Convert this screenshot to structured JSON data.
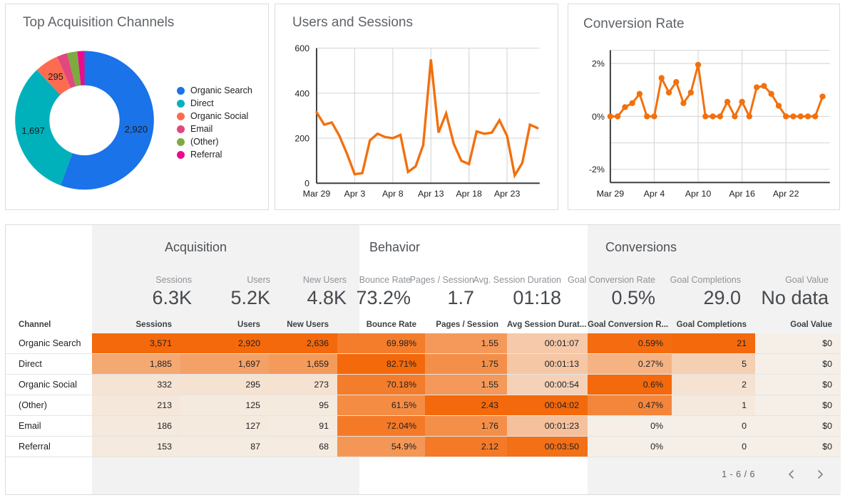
{
  "colors": {
    "orange": "#f2700d",
    "heat_low": "#f5efe7",
    "heat_high": "#f4690b",
    "band_gray": "#f2f2f2",
    "grid_line": "#d9d9d9",
    "axis_line": "#3c4043",
    "card_border": "#dadce0",
    "title_gray": "#5f6368"
  },
  "cards": {
    "donut": {
      "title": "Top Acquisition Channels"
    },
    "users": {
      "title": "Users and Sessions"
    },
    "conversion": {
      "title": "Conversion Rate"
    }
  },
  "chart_data": [
    {
      "type": "pie",
      "donut": true,
      "title": "Top Acquisition Channels",
      "legend_position": "right",
      "slices": [
        {
          "label": "Organic Search",
          "value": 2920,
          "display": "2,920",
          "color": "#1a73e8",
          "show_label": true
        },
        {
          "label": "Direct",
          "value": 1697,
          "display": "1,697",
          "color": "#00b1bb",
          "show_label": true
        },
        {
          "label": "Organic Social",
          "value": 295,
          "display": "295",
          "color": "#fd6c50",
          "show_label": true
        },
        {
          "label": "Email",
          "value": 127,
          "display": "127",
          "color": "#e2477e",
          "show_label": false
        },
        {
          "label": "(Other)",
          "value": 125,
          "display": "125",
          "color": "#7cab40",
          "show_label": false
        },
        {
          "label": "Referral",
          "value": 87,
          "display": "87",
          "color": "#ea0b8c",
          "show_label": false
        }
      ]
    },
    {
      "type": "line",
      "title": "Users and Sessions",
      "line_color": "#f2700d",
      "markers": false,
      "grid": true,
      "ylim": [
        0,
        600
      ],
      "yticks": [
        600,
        400,
        200,
        0
      ],
      "y_tick_labels": [
        "600",
        "400",
        "200",
        "0"
      ],
      "x": [
        "Mar 29",
        "Mar 30",
        "Mar 31",
        "Apr 1",
        "Apr 2",
        "Apr 3",
        "Apr 4",
        "Apr 5",
        "Apr 6",
        "Apr 7",
        "Apr 8",
        "Apr 9",
        "Apr 10",
        "Apr 11",
        "Apr 12",
        "Apr 13",
        "Apr 14",
        "Apr 15",
        "Apr 16",
        "Apr 17",
        "Apr 18",
        "Apr 19",
        "Apr 20",
        "Apr 21",
        "Apr 22",
        "Apr 23",
        "Apr 24",
        "Apr 25",
        "Apr 26",
        "Apr 27"
      ],
      "x_tick_indices": [
        0,
        5,
        10,
        15,
        20,
        25
      ],
      "x_tick_labels": [
        "Mar 29",
        "Apr 3",
        "Apr 8",
        "Apr 13",
        "Apr 18",
        "Apr 23"
      ],
      "series": [
        {
          "name": "Sessions",
          "values": [
            315,
            260,
            270,
            210,
            130,
            40,
            45,
            190,
            220,
            205,
            200,
            215,
            50,
            75,
            170,
            550,
            225,
            310,
            175,
            100,
            85,
            230,
            220,
            225,
            280,
            210,
            35,
            90,
            260,
            245
          ]
        }
      ]
    },
    {
      "type": "line",
      "title": "Conversion Rate",
      "line_color": "#f2700d",
      "markers": true,
      "grid": true,
      "unit": "%",
      "ylim": [
        -2.5,
        2.5
      ],
      "yticks": [
        2,
        0,
        -1,
        -2
      ],
      "y_tick_labels": [
        "2%",
        "0%",
        "",
        "-2%"
      ],
      "x": [
        "Mar 29",
        "Mar 30",
        "Mar 31",
        "Apr 1",
        "Apr 2",
        "Apr 3",
        "Apr 4",
        "Apr 5",
        "Apr 6",
        "Apr 7",
        "Apr 8",
        "Apr 9",
        "Apr 10",
        "Apr 11",
        "Apr 12",
        "Apr 13",
        "Apr 14",
        "Apr 15",
        "Apr 16",
        "Apr 17",
        "Apr 18",
        "Apr 19",
        "Apr 20",
        "Apr 21",
        "Apr 22",
        "Apr 23",
        "Apr 24",
        "Apr 25",
        "Apr 26",
        "Apr 27"
      ],
      "x_tick_indices": [
        0,
        6,
        12,
        18,
        24
      ],
      "x_tick_labels": [
        "Mar 29",
        "Apr 4",
        "Apr 10",
        "Apr 16",
        "Apr 22"
      ],
      "series": [
        {
          "name": "Conversion Rate",
          "values": [
            0,
            0,
            0.35,
            0.5,
            0.85,
            0,
            0,
            1.45,
            0.9,
            1.3,
            0.5,
            0.9,
            1.95,
            0,
            0,
            0,
            0.55,
            0,
            0.55,
            0,
            1.1,
            1.15,
            0.85,
            0.4,
            0,
            0,
            0,
            0,
            0,
            0.75
          ]
        }
      ]
    }
  ],
  "table": {
    "groups": [
      {
        "label": "Acquisition"
      },
      {
        "label": "Behavior"
      },
      {
        "label": "Conversions"
      }
    ],
    "scorecards": [
      {
        "label": "Sessions",
        "value": "6.3K"
      },
      {
        "label": "Users",
        "value": "5.2K"
      },
      {
        "label": "New Users",
        "value": "4.8K"
      },
      {
        "label": "Bounce Rate",
        "value": "73.2%"
      },
      {
        "label": "Pages / Session",
        "value": "1.7"
      },
      {
        "label": "Avg. Session Duration",
        "value": "01:18"
      },
      {
        "label": "Goal Conversion Rate",
        "value": "0.5%"
      },
      {
        "label": "Goal Completions",
        "value": "29.0"
      },
      {
        "label": "Goal Value",
        "value": "No data"
      }
    ],
    "columns": [
      "Channel",
      "Sessions",
      "Users",
      "New Users",
      "Bounce Rate",
      "Pages / Session",
      "Avg Session Durat...",
      "Goal Conversion R...",
      "Goal Completions",
      "Goal Value"
    ],
    "rows": [
      {
        "channel": "Organic Search",
        "cells": [
          "3,571",
          "2,920",
          "2,636",
          "69.98%",
          "1.55",
          "00:01:07",
          "0.59%",
          "21",
          "$0"
        ],
        "heat": [
          1,
          1,
          1,
          0.85,
          0.64,
          0.28,
          0.98,
          1,
          0
        ]
      },
      {
        "channel": "Direct",
        "cells": [
          "1,885",
          "1,697",
          "1,659",
          "82.71%",
          "1.75",
          "00:01:13",
          "0.27%",
          "5",
          "$0"
        ],
        "heat": [
          0.53,
          0.58,
          0.63,
          1,
          0.72,
          0.3,
          0.45,
          0.24,
          0
        ]
      },
      {
        "channel": "Organic Social",
        "cells": [
          "332",
          "295",
          "273",
          "70.18%",
          "1.55",
          "00:00:54",
          "0.6%",
          "2",
          "$0"
        ],
        "heat": [
          0.09,
          0.1,
          0.1,
          0.85,
          0.64,
          0.22,
          1,
          0.1,
          0
        ]
      },
      {
        "channel": "(Other)",
        "cells": [
          "213",
          "125",
          "95",
          "61.5%",
          "2.43",
          "00:04:02",
          "0.47%",
          "1",
          "$0"
        ],
        "heat": [
          0.06,
          0.04,
          0.04,
          0.74,
          1,
          1,
          0.78,
          0.05,
          0
        ]
      },
      {
        "channel": "Email",
        "cells": [
          "186",
          "127",
          "91",
          "72.04%",
          "1.76",
          "00:01:23",
          "0%",
          "0",
          "$0"
        ],
        "heat": [
          0.05,
          0.04,
          0.03,
          0.87,
          0.72,
          0.34,
          0,
          0,
          0
        ]
      },
      {
        "channel": "Referral",
        "cells": [
          "153",
          "87",
          "68",
          "54.9%",
          "2.12",
          "00:03:50",
          "0%",
          "0",
          "$0"
        ],
        "heat": [
          0.04,
          0.03,
          0.03,
          0.66,
          0.87,
          0.95,
          0,
          0,
          0
        ]
      }
    ],
    "pagination": {
      "label": "1 - 6 / 6",
      "prev_icon": "chevron-left-icon",
      "next_icon": "chevron-right-icon"
    }
  }
}
